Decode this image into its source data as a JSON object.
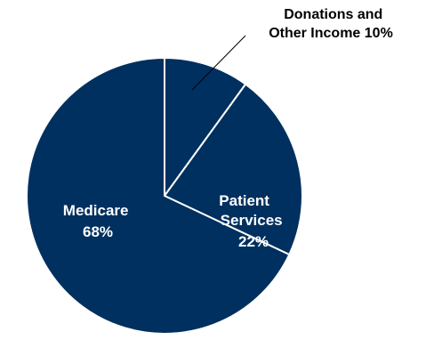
{
  "chart_data": {
    "type": "pie",
    "title": "",
    "slices": [
      {
        "label_lines": [
          "Donations and",
          "Other Income  10%"
        ],
        "value": 10
      },
      {
        "label_lines": [
          "Patient",
          "Services",
          "22%"
        ],
        "value": 22
      },
      {
        "label_lines": [
          "Medicare",
          "68%"
        ],
        "value": 68
      }
    ],
    "start_angle": "12 o'clock",
    "direction": "clockwise",
    "legend": "none"
  },
  "colors": {
    "slice_fill": "#00305F",
    "slice_border": "#ffffff",
    "inside_label": "#ffffff",
    "outside_label": "#000000",
    "leader_line": "#000000"
  }
}
